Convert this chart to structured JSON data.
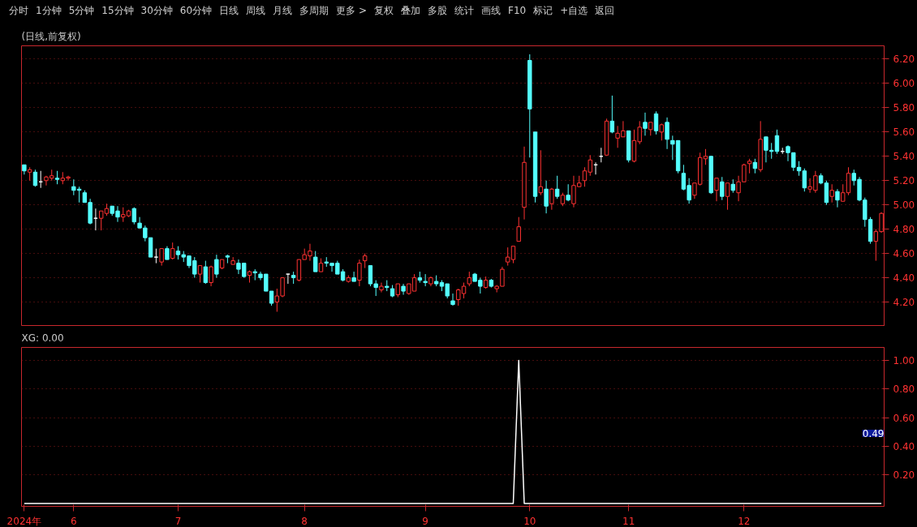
{
  "chart_data": [
    {
      "type": "candlestick",
      "title": "(日线,前复权)",
      "annotations": [
        "分时",
        "1分钟",
        "5分钟",
        "15分钟",
        "30分钟",
        "60分钟",
        "日线",
        "周线",
        "月线",
        "多周期",
        "更多 >",
        "复权",
        "叠加",
        "多股",
        "统计",
        "画线",
        "F10",
        "标记",
        "+自选",
        "返回"
      ],
      "categories": [
        null,
        null,
        null,
        null,
        null,
        null,
        null,
        null,
        null,
        null,
        null,
        null,
        null,
        null,
        null,
        null,
        null,
        null,
        null,
        null,
        null,
        null,
        null,
        null,
        null,
        null,
        null,
        null,
        null,
        null,
        null,
        null,
        null,
        null,
        null,
        null,
        null,
        null,
        null,
        null,
        null,
        null,
        null,
        null,
        null,
        null,
        null,
        null,
        null,
        null,
        null,
        null,
        null,
        null,
        null,
        null,
        null,
        null,
        null,
        null,
        null,
        null,
        null,
        null,
        null,
        null,
        null,
        null,
        null,
        null,
        null,
        null,
        null,
        null,
        null,
        null,
        null,
        null,
        null,
        null,
        null,
        null,
        null,
        null,
        null,
        null,
        null,
        null,
        null,
        null,
        null,
        null,
        null,
        null,
        null,
        null,
        null,
        null,
        null,
        null,
        null,
        null,
        null,
        null,
        null,
        null,
        null,
        null,
        null,
        null,
        null,
        null,
        null,
        null,
        null,
        null,
        null,
        null,
        null,
        null,
        null,
        null,
        null,
        null,
        null,
        null,
        null,
        null,
        null,
        null,
        null,
        null,
        null,
        null,
        null,
        null,
        null,
        null,
        null,
        null,
        null,
        null,
        null,
        null,
        null,
        null,
        null,
        null,
        null,
        null,
        null,
        null,
        null,
        null,
        null,
        null,
        null
      ],
      "ohlc": [
        [
          5.33,
          5.33,
          5.25,
          5.28
        ],
        [
          5.27,
          5.31,
          5.2,
          5.29
        ],
        [
          5.27,
          5.29,
          5.15,
          5.16
        ],
        [
          5.19,
          5.28,
          5.14,
          5.19
        ],
        [
          5.2,
          5.24,
          5.16,
          5.23
        ],
        [
          5.22,
          5.29,
          5.2,
          5.24
        ],
        [
          5.22,
          5.28,
          5.17,
          5.21
        ],
        [
          5.2,
          5.27,
          5.17,
          5.22
        ],
        [
          5.22,
          5.24,
          5.2,
          5.23
        ],
        [
          5.15,
          5.21,
          5.08,
          5.12
        ],
        [
          5.13,
          5.15,
          5.02,
          5.12
        ],
        [
          5.1,
          5.12,
          5.02,
          5.02
        ],
        [
          5.02,
          5.05,
          4.84,
          4.85
        ],
        [
          4.89,
          4.97,
          4.79,
          4.89
        ],
        [
          4.89,
          4.95,
          4.79,
          4.95
        ],
        [
          4.93,
          5.01,
          4.91,
          4.97
        ],
        [
          4.99,
          4.99,
          4.91,
          4.93
        ],
        [
          4.95,
          4.99,
          4.86,
          4.9
        ],
        [
          4.9,
          4.98,
          4.86,
          4.92
        ],
        [
          4.91,
          4.96,
          4.9,
          4.95
        ],
        [
          4.97,
          4.98,
          4.84,
          4.86
        ],
        [
          4.85,
          4.9,
          4.81,
          4.81
        ],
        [
          4.81,
          4.83,
          4.7,
          4.73
        ],
        [
          4.73,
          4.73,
          4.57,
          4.57
        ],
        [
          4.57,
          4.64,
          4.52,
          4.57
        ],
        [
          4.53,
          4.64,
          4.5,
          4.64
        ],
        [
          4.64,
          4.66,
          4.55,
          4.55
        ],
        [
          4.56,
          4.69,
          4.55,
          4.64
        ],
        [
          4.62,
          4.66,
          4.55,
          4.59
        ],
        [
          4.59,
          4.62,
          4.53,
          4.57
        ],
        [
          4.58,
          4.58,
          4.48,
          4.5
        ],
        [
          4.54,
          4.57,
          4.4,
          4.43
        ],
        [
          4.43,
          4.5,
          4.36,
          4.5
        ],
        [
          4.49,
          4.54,
          4.35,
          4.36
        ],
        [
          4.36,
          4.5,
          4.33,
          4.49
        ],
        [
          4.55,
          4.59,
          4.4,
          4.43
        ],
        [
          4.48,
          4.55,
          4.47,
          4.55
        ],
        [
          4.58,
          4.59,
          4.52,
          4.57
        ],
        [
          4.51,
          4.57,
          4.51,
          4.54
        ],
        [
          4.52,
          4.55,
          4.43,
          4.47
        ],
        [
          4.52,
          4.52,
          4.4,
          4.41
        ],
        [
          4.42,
          4.46,
          4.36,
          4.45
        ],
        [
          4.45,
          4.47,
          4.38,
          4.44
        ],
        [
          4.43,
          4.45,
          4.38,
          4.4
        ],
        [
          4.43,
          4.43,
          4.29,
          4.29
        ],
        [
          4.29,
          4.29,
          4.17,
          4.19
        ],
        [
          4.2,
          4.31,
          4.12,
          4.25
        ],
        [
          4.25,
          4.4,
          4.24,
          4.4
        ],
        [
          4.43,
          4.43,
          4.35,
          4.43
        ],
        [
          4.42,
          4.45,
          4.35,
          4.4
        ],
        [
          4.38,
          4.55,
          4.37,
          4.55
        ],
        [
          4.55,
          4.64,
          4.55,
          4.59
        ],
        [
          4.58,
          4.68,
          4.54,
          4.62
        ],
        [
          4.57,
          4.62,
          4.45,
          4.45
        ],
        [
          4.45,
          4.56,
          4.45,
          4.52
        ],
        [
          4.53,
          4.57,
          4.49,
          4.52
        ],
        [
          4.52,
          4.52,
          4.45,
          4.5
        ],
        [
          4.52,
          4.54,
          4.43,
          4.43
        ],
        [
          4.45,
          4.47,
          4.37,
          4.38
        ],
        [
          4.37,
          4.42,
          4.36,
          4.4
        ],
        [
          4.4,
          4.45,
          4.37,
          4.37
        ],
        [
          4.38,
          4.55,
          4.33,
          4.52
        ],
        [
          4.54,
          4.6,
          4.48,
          4.58
        ],
        [
          4.5,
          4.5,
          4.33,
          4.35
        ],
        [
          4.35,
          4.38,
          4.25,
          4.32
        ],
        [
          4.3,
          4.36,
          4.28,
          4.33
        ],
        [
          4.33,
          4.38,
          4.29,
          4.32
        ],
        [
          4.31,
          4.34,
          4.24,
          4.25
        ],
        [
          4.26,
          4.35,
          4.24,
          4.35
        ],
        [
          4.33,
          4.35,
          4.26,
          4.29
        ],
        [
          4.27,
          4.35,
          4.26,
          4.35
        ],
        [
          4.29,
          4.43,
          4.29,
          4.4
        ],
        [
          4.4,
          4.45,
          4.36,
          4.38
        ],
        [
          4.37,
          4.43,
          4.33,
          4.36
        ],
        [
          4.35,
          4.41,
          4.33,
          4.4
        ],
        [
          4.37,
          4.42,
          4.33,
          4.35
        ],
        [
          4.36,
          4.38,
          4.29,
          4.33
        ],
        [
          4.35,
          4.35,
          4.23,
          4.25
        ],
        [
          4.21,
          4.27,
          4.17,
          4.18
        ],
        [
          4.22,
          4.31,
          4.17,
          4.3
        ],
        [
          4.27,
          4.36,
          4.23,
          4.33
        ],
        [
          4.35,
          4.45,
          4.33,
          4.4
        ],
        [
          4.43,
          4.44,
          4.37,
          4.37
        ],
        [
          4.38,
          4.4,
          4.27,
          4.33
        ],
        [
          4.32,
          4.41,
          4.31,
          4.38
        ],
        [
          4.38,
          4.39,
          4.32,
          4.33
        ],
        [
          4.31,
          4.34,
          4.28,
          4.33
        ],
        [
          4.33,
          4.49,
          4.33,
          4.47
        ],
        [
          4.53,
          4.65,
          4.5,
          4.57
        ],
        [
          4.55,
          4.66,
          4.52,
          4.66
        ],
        [
          4.7,
          4.9,
          4.7,
          4.82
        ],
        [
          4.98,
          5.48,
          4.88,
          5.35
        ],
        [
          6.19,
          6.24,
          5.39,
          5.79
        ],
        [
          5.6,
          5.6,
          5.02,
          5.07
        ],
        [
          5.1,
          5.45,
          5.08,
          5.15
        ],
        [
          5.13,
          5.2,
          4.93,
          4.99
        ],
        [
          5.01,
          5.14,
          4.96,
          5.13
        ],
        [
          5.13,
          5.24,
          5.05,
          5.07
        ],
        [
          5.01,
          5.1,
          4.99,
          5.08
        ],
        [
          5.08,
          5.17,
          5.03,
          5.04
        ],
        [
          5.01,
          5.24,
          4.98,
          5.16
        ],
        [
          5.15,
          5.24,
          5.15,
          5.18
        ],
        [
          5.2,
          5.31,
          5.15,
          5.28
        ],
        [
          5.27,
          5.41,
          5.24,
          5.37
        ],
        [
          5.33,
          5.35,
          5.25,
          5.33
        ],
        [
          5.4,
          5.47,
          5.35,
          5.4
        ],
        [
          5.41,
          5.71,
          5.41,
          5.69
        ],
        [
          5.69,
          5.9,
          5.59,
          5.6
        ],
        [
          5.55,
          5.65,
          5.47,
          5.59
        ],
        [
          5.56,
          5.69,
          5.56,
          5.61
        ],
        [
          5.61,
          5.61,
          5.35,
          5.37
        ],
        [
          5.36,
          5.62,
          5.35,
          5.53
        ],
        [
          5.52,
          5.69,
          5.5,
          5.64
        ],
        [
          5.68,
          5.76,
          5.57,
          5.63
        ],
        [
          5.62,
          5.68,
          5.57,
          5.68
        ],
        [
          5.75,
          5.77,
          5.58,
          5.61
        ],
        [
          5.6,
          5.67,
          5.53,
          5.66
        ],
        [
          5.68,
          5.72,
          5.46,
          5.54
        ],
        [
          5.53,
          5.57,
          5.37,
          5.5
        ],
        [
          5.53,
          5.53,
          5.26,
          5.28
        ],
        [
          5.26,
          5.33,
          5.12,
          5.13
        ],
        [
          5.16,
          5.22,
          5.01,
          5.04
        ],
        [
          5.08,
          5.18,
          5.05,
          5.18
        ],
        [
          5.17,
          5.43,
          5.16,
          5.39
        ],
        [
          5.38,
          5.46,
          5.33,
          5.4
        ],
        [
          5.4,
          5.4,
          5.09,
          5.1
        ],
        [
          5.12,
          5.22,
          5.03,
          5.22
        ],
        [
          5.19,
          5.23,
          5.04,
          5.07
        ],
        [
          5.07,
          5.18,
          4.96,
          5.18
        ],
        [
          5.17,
          5.21,
          5.1,
          5.12
        ],
        [
          5.1,
          5.24,
          5.03,
          5.19
        ],
        [
          5.19,
          5.34,
          5.19,
          5.33
        ],
        [
          5.34,
          5.38,
          5.26,
          5.36
        ],
        [
          5.35,
          5.38,
          5.26,
          5.3
        ],
        [
          5.29,
          5.69,
          5.27,
          5.54
        ],
        [
          5.56,
          5.56,
          5.35,
          5.45
        ],
        [
          5.45,
          5.51,
          5.38,
          5.44
        ],
        [
          5.57,
          5.62,
          5.42,
          5.44
        ],
        [
          5.44,
          5.47,
          5.42,
          5.44
        ],
        [
          5.48,
          5.49,
          5.36,
          5.43
        ],
        [
          5.43,
          5.43,
          5.28,
          5.31
        ],
        [
          5.31,
          5.36,
          5.24,
          5.28
        ],
        [
          5.28,
          5.3,
          5.11,
          5.14
        ],
        [
          5.13,
          5.22,
          5.1,
          5.15
        ],
        [
          5.12,
          5.28,
          5.1,
          5.24
        ],
        [
          5.24,
          5.26,
          5.17,
          5.18
        ],
        [
          5.18,
          5.2,
          5.0,
          5.02
        ],
        [
          5.07,
          5.17,
          5.02,
          5.12
        ],
        [
          5.11,
          5.13,
          4.98,
          5.04
        ],
        [
          5.03,
          5.17,
          5.03,
          5.1
        ],
        [
          5.1,
          5.31,
          5.08,
          5.26
        ],
        [
          5.26,
          5.29,
          5.16,
          5.2
        ],
        [
          5.21,
          5.23,
          5.03,
          5.04
        ],
        [
          5.04,
          5.06,
          4.82,
          4.88
        ],
        [
          4.88,
          4.9,
          4.68,
          4.7
        ],
        [
          4.7,
          4.8,
          4.54,
          4.78
        ],
        [
          4.78,
          4.94,
          4.77,
          4.93
        ]
      ],
      "colors": [
        "#54ffff",
        "#ff3232",
        "#54ffff",
        "#ffffff",
        "#ff3232",
        "#ff3232",
        "#54ffff",
        "#ff3232",
        "#ff3232",
        "#54ffff",
        "#54ffff",
        "#54ffff",
        "#54ffff",
        "#ffffff",
        "#ff3232",
        "#ff3232",
        "#54ffff",
        "#54ffff",
        "#ff3232",
        "#ff3232",
        "#54ffff",
        "#54ffff",
        "#54ffff",
        "#54ffff",
        "#ffffff",
        "#ff3232",
        "#54ffff",
        "#ff3232",
        "#54ffff",
        "#54ffff",
        "#54ffff",
        "#54ffff",
        "#ff3232",
        "#54ffff",
        "#ff3232",
        "#54ffff",
        "#ff3232",
        "#54ffff",
        "#ff3232",
        "#54ffff",
        "#54ffff",
        "#ff3232",
        "#54ffff",
        "#54ffff",
        "#54ffff",
        "#54ffff",
        "#ff3232",
        "#ff3232",
        "#ffffff",
        "#54ffff",
        "#ff3232",
        "#ff3232",
        "#ff3232",
        "#54ffff",
        "#ff3232",
        "#54ffff",
        "#54ffff",
        "#54ffff",
        "#54ffff",
        "#ff3232",
        "#54ffff",
        "#ff3232",
        "#ff3232",
        "#54ffff",
        "#54ffff",
        "#ff3232",
        "#54ffff",
        "#54ffff",
        "#ff3232",
        "#54ffff",
        "#ff3232",
        "#ff3232",
        "#54ffff",
        "#54ffff",
        "#ff3232",
        "#54ffff",
        "#54ffff",
        "#54ffff",
        "#54ffff",
        "#ff3232",
        "#ff3232",
        "#ff3232",
        "#54ffff",
        "#54ffff",
        "#ff3232",
        "#54ffff",
        "#ff3232",
        "#ff3232",
        "#ff3232",
        "#ff3232",
        "#ff3232",
        "#ff3232",
        "#54ffff",
        "#54ffff",
        "#ff3232",
        "#54ffff",
        "#ff3232",
        "#54ffff",
        "#ff3232",
        "#54ffff",
        "#ff3232",
        "#ff3232",
        "#ff3232",
        "#ff3232",
        "#ffffff",
        "#ffffff",
        "#ff3232",
        "#54ffff",
        "#ff3232",
        "#ff3232",
        "#54ffff",
        "#ff3232",
        "#ff3232",
        "#54ffff",
        "#ff3232",
        "#54ffff",
        "#ff3232",
        "#54ffff",
        "#54ffff",
        "#54ffff",
        "#54ffff",
        "#54ffff",
        "#ff3232",
        "#ff3232",
        "#ff3232",
        "#54ffff",
        "#ff3232",
        "#54ffff",
        "#ff3232",
        "#54ffff",
        "#ff3232",
        "#ff3232",
        "#ff3232",
        "#54ffff",
        "#ff3232",
        "#54ffff",
        "#54ffff",
        "#54ffff",
        "#ffffff",
        "#54ffff",
        "#54ffff",
        "#54ffff",
        "#54ffff",
        "#ff3232",
        "#ff3232",
        "#54ffff",
        "#54ffff",
        "#ff3232",
        "#54ffff",
        "#ff3232",
        "#ff3232",
        "#54ffff",
        "#54ffff",
        "#54ffff",
        "#54ffff",
        "#ff3232",
        "#ff3232"
      ],
      "ylim": [
        4.0,
        6.31
      ],
      "yticks": [
        {
          "value": 4.2,
          "label": "4.20"
        },
        {
          "value": 4.4,
          "label": "4.40"
        },
        {
          "value": 4.6,
          "label": "4.60"
        },
        {
          "value": 4.8,
          "label": "4.80"
        },
        {
          "value": 5.0,
          "label": "5.00"
        },
        {
          "value": 5.2,
          "label": "5.20"
        },
        {
          "value": 5.4,
          "label": "5.40"
        },
        {
          "value": 5.6,
          "label": "5.60"
        },
        {
          "value": 5.8,
          "label": "5.80"
        },
        {
          "value": 6.0,
          "label": "6.00"
        },
        {
          "value": 6.2,
          "label": "6.20"
        }
      ],
      "grid": "y",
      "tick_labels": "y"
    },
    {
      "type": "line",
      "title": "XG: 0.00",
      "annotations": [
        {
          "text": "0.49",
          "y": 0.49
        }
      ],
      "categories": [
        "2024年",
        null,
        null,
        null,
        null,
        null,
        null,
        null,
        null,
        "6",
        null,
        null,
        null,
        null,
        null,
        null,
        null,
        null,
        null,
        null,
        null,
        null,
        null,
        null,
        null,
        null,
        null,
        null,
        "7",
        null,
        null,
        null,
        null,
        null,
        null,
        null,
        null,
        null,
        null,
        null,
        null,
        null,
        null,
        null,
        null,
        null,
        null,
        null,
        null,
        null,
        null,
        "8",
        null,
        null,
        null,
        null,
        null,
        null,
        null,
        null,
        null,
        null,
        null,
        null,
        null,
        null,
        null,
        null,
        null,
        null,
        null,
        null,
        null,
        "9",
        null,
        null,
        null,
        null,
        null,
        null,
        null,
        null,
        null,
        null,
        null,
        null,
        null,
        null,
        null,
        null,
        null,
        null,
        "10",
        null,
        null,
        null,
        null,
        null,
        null,
        null,
        null,
        null,
        null,
        null,
        null,
        null,
        null,
        null,
        null,
        null,
        "11",
        null,
        null,
        null,
        null,
        null,
        null,
        null,
        null,
        null,
        null,
        null,
        null,
        null,
        null,
        null,
        null,
        null,
        null,
        null,
        null,
        "12",
        null,
        null,
        null,
        null,
        null,
        null,
        null,
        null,
        null,
        null,
        null,
        null,
        null,
        null,
        null,
        null,
        null,
        null,
        null,
        null,
        null,
        null,
        null,
        null,
        null
      ],
      "series": [
        {
          "color": "#ffffff",
          "values": [
            0,
            0,
            0,
            0,
            0,
            0,
            0,
            0,
            0,
            0,
            0,
            0,
            0,
            0,
            0,
            0,
            0,
            0,
            0,
            0,
            0,
            0,
            0,
            0,
            0,
            0,
            0,
            0,
            0,
            0,
            0,
            0,
            0,
            0,
            0,
            0,
            0,
            0,
            0,
            0,
            0,
            0,
            0,
            0,
            0,
            0,
            0,
            0,
            0,
            0,
            0,
            0,
            0,
            0,
            0,
            0,
            0,
            0,
            0,
            0,
            0,
            0,
            0,
            0,
            0,
            0,
            0,
            0,
            0,
            0,
            0,
            0,
            0,
            0,
            0,
            0,
            0,
            0,
            0,
            0,
            0,
            0,
            0,
            0,
            0,
            0,
            0,
            0,
            0,
            0,
            1,
            0,
            0,
            0,
            0,
            0,
            0,
            0,
            0,
            0,
            0,
            0,
            0,
            0,
            0,
            0,
            0,
            0,
            0,
            0,
            0,
            0,
            0,
            0,
            0,
            0,
            0,
            0,
            0,
            0,
            0,
            0,
            0,
            0,
            0,
            0,
            0,
            0,
            0,
            0,
            0,
            0,
            0,
            0,
            0,
            0,
            0,
            0,
            0,
            0,
            0,
            0,
            0,
            0,
            0,
            0,
            0,
            0,
            0,
            0,
            0,
            0,
            0,
            0,
            0,
            0,
            0
          ]
        }
      ],
      "ylim": [
        -0.02,
        1.09
      ],
      "yticks": [
        {
          "value": 0.2,
          "label": "0.20"
        },
        {
          "value": 0.4,
          "label": "0.40"
        },
        {
          "value": 0.6,
          "label": "0.60"
        },
        {
          "value": 0.8,
          "label": "0.80"
        },
        {
          "value": 1.0,
          "label": "1.00"
        }
      ],
      "grid": "y"
    }
  ]
}
